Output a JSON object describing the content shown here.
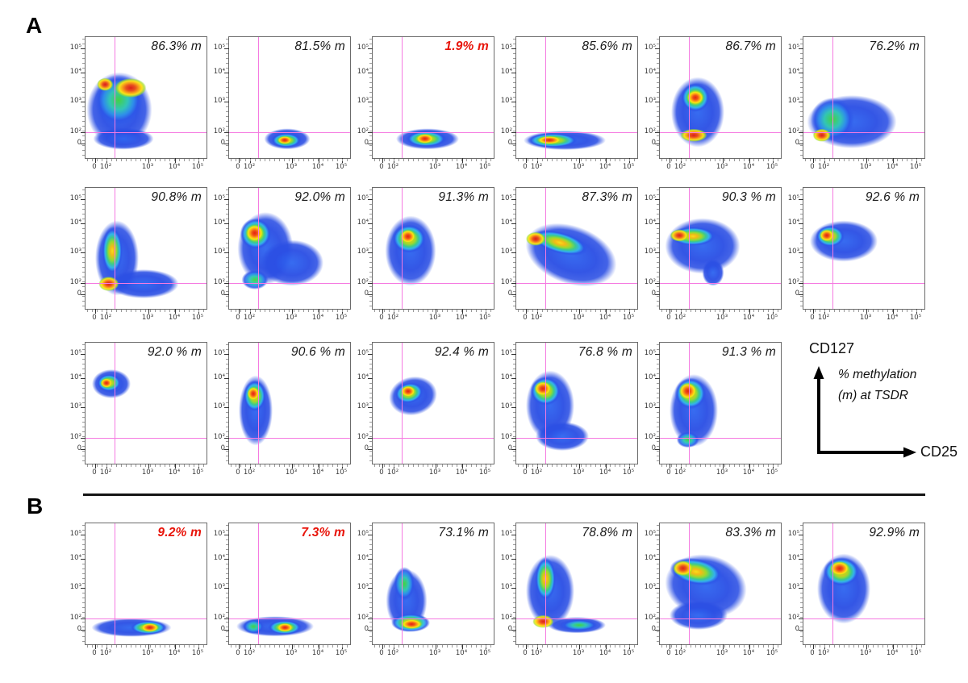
{
  "figure_title": "Flow cytometry CD25 vs CD127 pseudocolor plots with TSDR methylation",
  "panel_a_label": "A",
  "panel_b_label": "B",
  "annotation": {
    "y_axis_label": "CD127",
    "x_axis_label": "CD25",
    "note_line1": "% methylation",
    "note_line2": "(m)  at TSDR"
  },
  "colors": {
    "gate_line": "#f57ae1",
    "label_black": "#1a1a1a",
    "label_red": "#e8150b",
    "frame_border": "#6b6b6b"
  },
  "chart_data": {
    "type": "heatmap",
    "subtype": "flow-cytometry-pseudocolor-density",
    "x_axis": "CD25",
    "y_axis": "CD127",
    "x_scale": "biexponential-log",
    "y_scale": "biexponential-log",
    "x_ticks": [
      "0",
      "10²",
      "10³",
      "10⁴",
      "10⁵"
    ],
    "y_ticks": [
      "10⁵",
      "10⁴",
      "10³",
      "10²",
      "0"
    ],
    "gate": "quadrant crosshair at ~CD25=10², CD127=10²",
    "annotation_text": "% methylation (m) at TSDR",
    "panels": [
      {
        "label": "A",
        "rows": [
          [
            {
              "value": "86.3% m",
              "pct": 86.3,
              "color": "black",
              "blobs": [
                [
                  "blue",
                  28,
                  60,
                  54,
                  62,
                  0
                ],
                [
                  "blue",
                  31,
                  84,
                  50,
                  18,
                  0
                ],
                [
                  "green",
                  27,
                  52,
                  40,
                  42,
                  0
                ],
                [
                  "hot",
                  16,
                  39,
                  13,
                  11,
                  0
                ],
                [
                  "hot",
                  37,
                  42,
                  26,
                  16,
                  0
                ]
              ]
            },
            {
              "value": "81.5% m",
              "pct": 81.5,
              "color": "black",
              "blobs": [
                [
                  "blue",
                  48,
                  84,
                  38,
                  17,
                  0
                ],
                [
                  "warm",
                  47,
                  85,
                  25,
                  12,
                  0
                ],
                [
                  "hot",
                  46,
                  85,
                  12,
                  7,
                  0
                ]
              ]
            },
            {
              "value": "1.9% m",
              "pct": 1.9,
              "color": "red",
              "blobs": [
                [
                  "blue",
                  45,
                  84,
                  52,
                  17,
                  0
                ],
                [
                  "warm",
                  44,
                  84,
                  33,
                  13,
                  0
                ],
                [
                  "hot",
                  43,
                  84,
                  15,
                  8,
                  0
                ]
              ]
            },
            {
              "value": "85.6% m",
              "pct": 85.6,
              "color": "black",
              "blobs": [
                [
                  "blue",
                  40,
                  85,
                  68,
                  16,
                  0
                ],
                [
                  "warm",
                  30,
                  85,
                  42,
                  12,
                  0
                ],
                [
                  "hot",
                  27,
                  85,
                  20,
                  7,
                  0
                ]
              ]
            },
            {
              "value": "86.7% m",
              "pct": 86.7,
              "color": "black",
              "blobs": [
                [
                  "blue",
                  31,
                  62,
                  44,
                  58,
                  0
                ],
                [
                  "warm",
                  29,
                  50,
                  24,
                  24,
                  0
                ],
                [
                  "hot",
                  29,
                  50,
                  14,
                  12,
                  0
                ],
                [
                  "hot",
                  28,
                  81,
                  22,
                  11,
                  0
                ]
              ]
            },
            {
              "value": "76.2% m",
              "pct": 76.2,
              "color": "black",
              "blobs": [
                [
                  "blue",
                  40,
                  70,
                  74,
                  44,
                  0
                ],
                [
                  "green",
                  24,
                  68,
                  36,
                  36,
                  0
                ],
                [
                  "hot",
                  15,
                  81,
                  15,
                  11,
                  0
                ]
              ]
            }
          ],
          [
            {
              "value": "90.8% m",
              "pct": 90.8,
              "color": "black",
              "blobs": [
                [
                  "blue",
                  26,
                  58,
                  36,
                  62,
                  0
                ],
                [
                  "blue",
                  48,
                  79,
                  58,
                  24,
                  0
                ],
                [
                  "warm",
                  22,
                  52,
                  17,
                  40,
                  0
                ],
                [
                  "hot",
                  19,
                  79,
                  17,
                  12,
                  0
                ]
              ]
            },
            {
              "value": "92.0% m",
              "pct": 92.0,
              "color": "black",
              "blobs": [
                [
                  "blue",
                  30,
                  50,
                  46,
                  60,
                  0
                ],
                [
                  "blue",
                  52,
                  62,
                  52,
                  38,
                  0
                ],
                [
                  "warm",
                  22,
                  38,
                  26,
                  26,
                  0
                ],
                [
                  "hot",
                  21,
                  37,
                  15,
                  14,
                  0
                ],
                [
                  "green",
                  21,
                  76,
                  22,
                  16,
                  0
                ]
              ]
            },
            {
              "value": "91.3% m",
              "pct": 91.3,
              "color": "black",
              "blobs": [
                [
                  "blue",
                  31,
                  52,
                  42,
                  58,
                  0
                ],
                [
                  "warm",
                  30,
                  42,
                  28,
                  24,
                  0
                ],
                [
                  "hot",
                  29,
                  40,
                  13,
                  11,
                  0
                ]
              ]
            },
            {
              "value": "87.3% m",
              "pct": 87.3,
              "color": "black",
              "blobs": [
                [
                  "blue",
                  45,
                  55,
                  78,
                  48,
                  20
                ],
                [
                  "warm",
                  36,
                  45,
                  48,
                  18,
                  15
                ],
                [
                  "hot",
                  16,
                  42,
                  16,
                  11,
                  0
                ]
              ]
            },
            {
              "value": "90.3 % m",
              "pct": 90.3,
              "color": "black",
              "blobs": [
                [
                  "blue",
                  35,
                  48,
                  62,
                  46,
                  0
                ],
                [
                  "blue",
                  44,
                  70,
                  18,
                  22,
                  0
                ],
                [
                  "warm",
                  27,
                  40,
                  38,
                  16,
                  0
                ],
                [
                  "hot",
                  16,
                  39,
                  15,
                  10,
                  0
                ]
              ]
            },
            {
              "value": "92.6 % m",
              "pct": 92.6,
              "color": "black",
              "blobs": [
                [
                  "blue",
                  33,
                  44,
                  56,
                  34,
                  0
                ],
                [
                  "warm",
                  22,
                  40,
                  24,
                  18,
                  0
                ],
                [
                  "hot",
                  19,
                  39,
                  12,
                  10,
                  0
                ]
              ]
            }
          ],
          [
            {
              "value": "92.0 % m",
              "pct": 92.0,
              "color": "black",
              "blobs": [
                [
                  "blue",
                  21,
                  34,
                  32,
                  24,
                  0
                ],
                [
                  "warm",
                  19,
                  33,
                  20,
                  15,
                  0
                ],
                [
                  "hot",
                  17,
                  33,
                  10,
                  8,
                  0
                ]
              ]
            },
            {
              "value": "90.6 % m",
              "pct": 90.6,
              "color": "black",
              "blobs": [
                [
                  "blue",
                  22,
                  56,
                  28,
                  58,
                  0
                ],
                [
                  "warm",
                  21,
                  44,
                  19,
                  26,
                  0
                ],
                [
                  "hot",
                  20,
                  42,
                  10,
                  11,
                  0
                ]
              ]
            },
            {
              "value": "92.4 % m",
              "pct": 92.4,
              "color": "black",
              "blobs": [
                [
                  "blue",
                  33,
                  44,
                  40,
                  32,
                  -12
                ],
                [
                  "warm",
                  30,
                  41,
                  24,
                  17,
                  -12
                ],
                [
                  "hot",
                  29,
                  40,
                  12,
                  9,
                  0
                ]
              ]
            },
            {
              "value": "76.8 % m",
              "pct": 76.8,
              "color": "black",
              "blobs": [
                [
                  "blue",
                  28,
                  52,
                  40,
                  58,
                  0
                ],
                [
                  "blue",
                  38,
                  77,
                  44,
                  24,
                  0
                ],
                [
                  "warm",
                  24,
                  40,
                  25,
                  24,
                  0
                ],
                [
                  "hot",
                  22,
                  38,
                  14,
                  12,
                  0
                ]
              ]
            },
            {
              "value": "91.3 % m",
              "pct": 91.3,
              "color": "black",
              "blobs": [
                [
                  "blue",
                  28,
                  56,
                  40,
                  60,
                  0
                ],
                [
                  "warm",
                  25,
                  42,
                  26,
                  26,
                  0
                ],
                [
                  "hot",
                  23,
                  40,
                  15,
                  14,
                  0
                ],
                [
                  "green",
                  23,
                  80,
                  19,
                  13,
                  0
                ]
              ]
            }
          ]
        ]
      },
      {
        "label": "B",
        "rows": [
          [
            {
              "value": "9.2% m",
              "pct": 9.2,
              "color": "red",
              "blobs": [
                [
                  "blue",
                  38,
                  86,
                  66,
                  15,
                  0
                ],
                [
                  "warm",
                  52,
                  86,
                  30,
                  11,
                  0
                ],
                [
                  "hot",
                  53,
                  86,
                  15,
                  7,
                  0
                ]
              ]
            },
            {
              "value": "7.3% m",
              "pct": 7.3,
              "color": "red",
              "blobs": [
                [
                  "blue",
                  38,
                  85,
                  64,
                  17,
                  0
                ],
                [
                  "green",
                  20,
                  85,
                  17,
                  12,
                  0
                ],
                [
                  "warm",
                  46,
                  86,
                  28,
                  12,
                  0
                ],
                [
                  "hot",
                  46,
                  86,
                  13,
                  7,
                  0
                ]
              ]
            },
            {
              "value": "73.1% m",
              "pct": 73.1,
              "color": "black",
              "blobs": [
                [
                  "blue",
                  28,
                  64,
                  34,
                  52,
                  0
                ],
                [
                  "green",
                  26,
                  50,
                  17,
                  28,
                  0
                ],
                [
                  "warm",
                  31,
                  82,
                  32,
                  15,
                  0
                ],
                [
                  "hot",
                  32,
                  83,
                  17,
                  8,
                  0
                ]
              ]
            },
            {
              "value": "78.8% m",
              "pct": 78.8,
              "color": "black",
              "blobs": [
                [
                  "blue",
                  28,
                  56,
                  40,
                  60,
                  0
                ],
                [
                  "blue",
                  50,
                  84,
                  48,
                  13,
                  0
                ],
                [
                  "green",
                  52,
                  84,
                  30,
                  9,
                  0
                ],
                [
                  "warm",
                  24,
                  46,
                  17,
                  36,
                  0
                ],
                [
                  "hot",
                  22,
                  81,
                  17,
                  11,
                  0
                ]
              ]
            },
            {
              "value": "83.3% m",
              "pct": 83.3,
              "color": "black",
              "blobs": [
                [
                  "blue",
                  38,
                  52,
                  68,
                  52,
                  12
                ],
                [
                  "blue",
                  32,
                  76,
                  48,
                  24,
                  0
                ],
                [
                  "warm",
                  30,
                  40,
                  44,
                  22,
                  10
                ],
                [
                  "hot",
                  19,
                  37,
                  17,
                  13,
                  0
                ]
              ]
            },
            {
              "value": "92.9% m",
              "pct": 92.9,
              "color": "black",
              "blobs": [
                [
                  "blue",
                  33,
                  54,
                  44,
                  58,
                  0
                ],
                [
                  "warm",
                  31,
                  40,
                  30,
                  24,
                  0
                ],
                [
                  "hot",
                  30,
                  37,
                  16,
                  12,
                  0
                ]
              ]
            }
          ]
        ]
      }
    ]
  }
}
